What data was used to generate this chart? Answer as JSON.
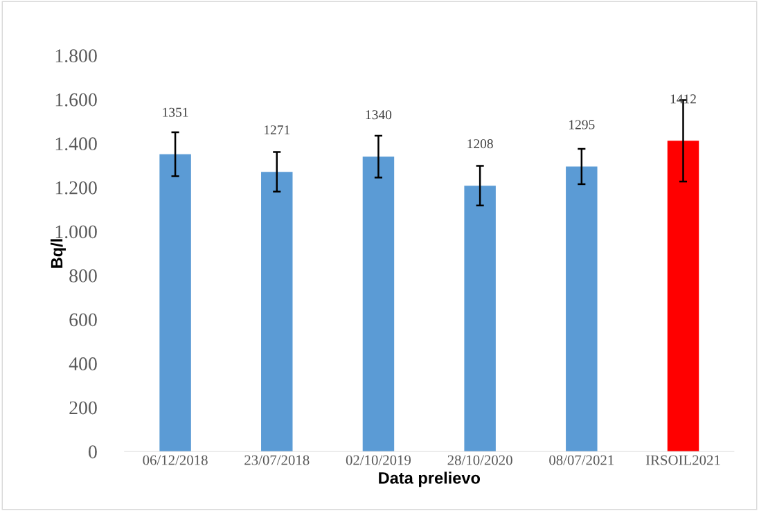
{
  "chart_data": {
    "type": "bar",
    "xlabel": "Data prelievo",
    "ylabel": "Bq/l",
    "categories": [
      "06/12/2018",
      "23/07/2018",
      "02/10/2019",
      "28/10/2020",
      "08/07/2021",
      "IRSOIL2021"
    ],
    "values": [
      1351,
      1271,
      1340,
      1208,
      1295,
      1412
    ],
    "colors": [
      "#5b9bd5",
      "#5b9bd5",
      "#5b9bd5",
      "#5b9bd5",
      "#5b9bd5",
      "#ff0000"
    ],
    "errors": [
      100,
      90,
      95,
      90,
      80,
      185
    ],
    "data_labels": true,
    "ylim": [
      0,
      1800
    ],
    "yticks": [
      0,
      200,
      400,
      600,
      800,
      {
        "value": 1000,
        "label": "1.000"
      },
      {
        "value": 1200,
        "label": "1.200"
      },
      {
        "value": 1400,
        "label": "1.400"
      },
      {
        "value": 1600,
        "label": "1.600"
      },
      {
        "value": 1800,
        "label": "1.800"
      }
    ],
    "grid": false
  }
}
